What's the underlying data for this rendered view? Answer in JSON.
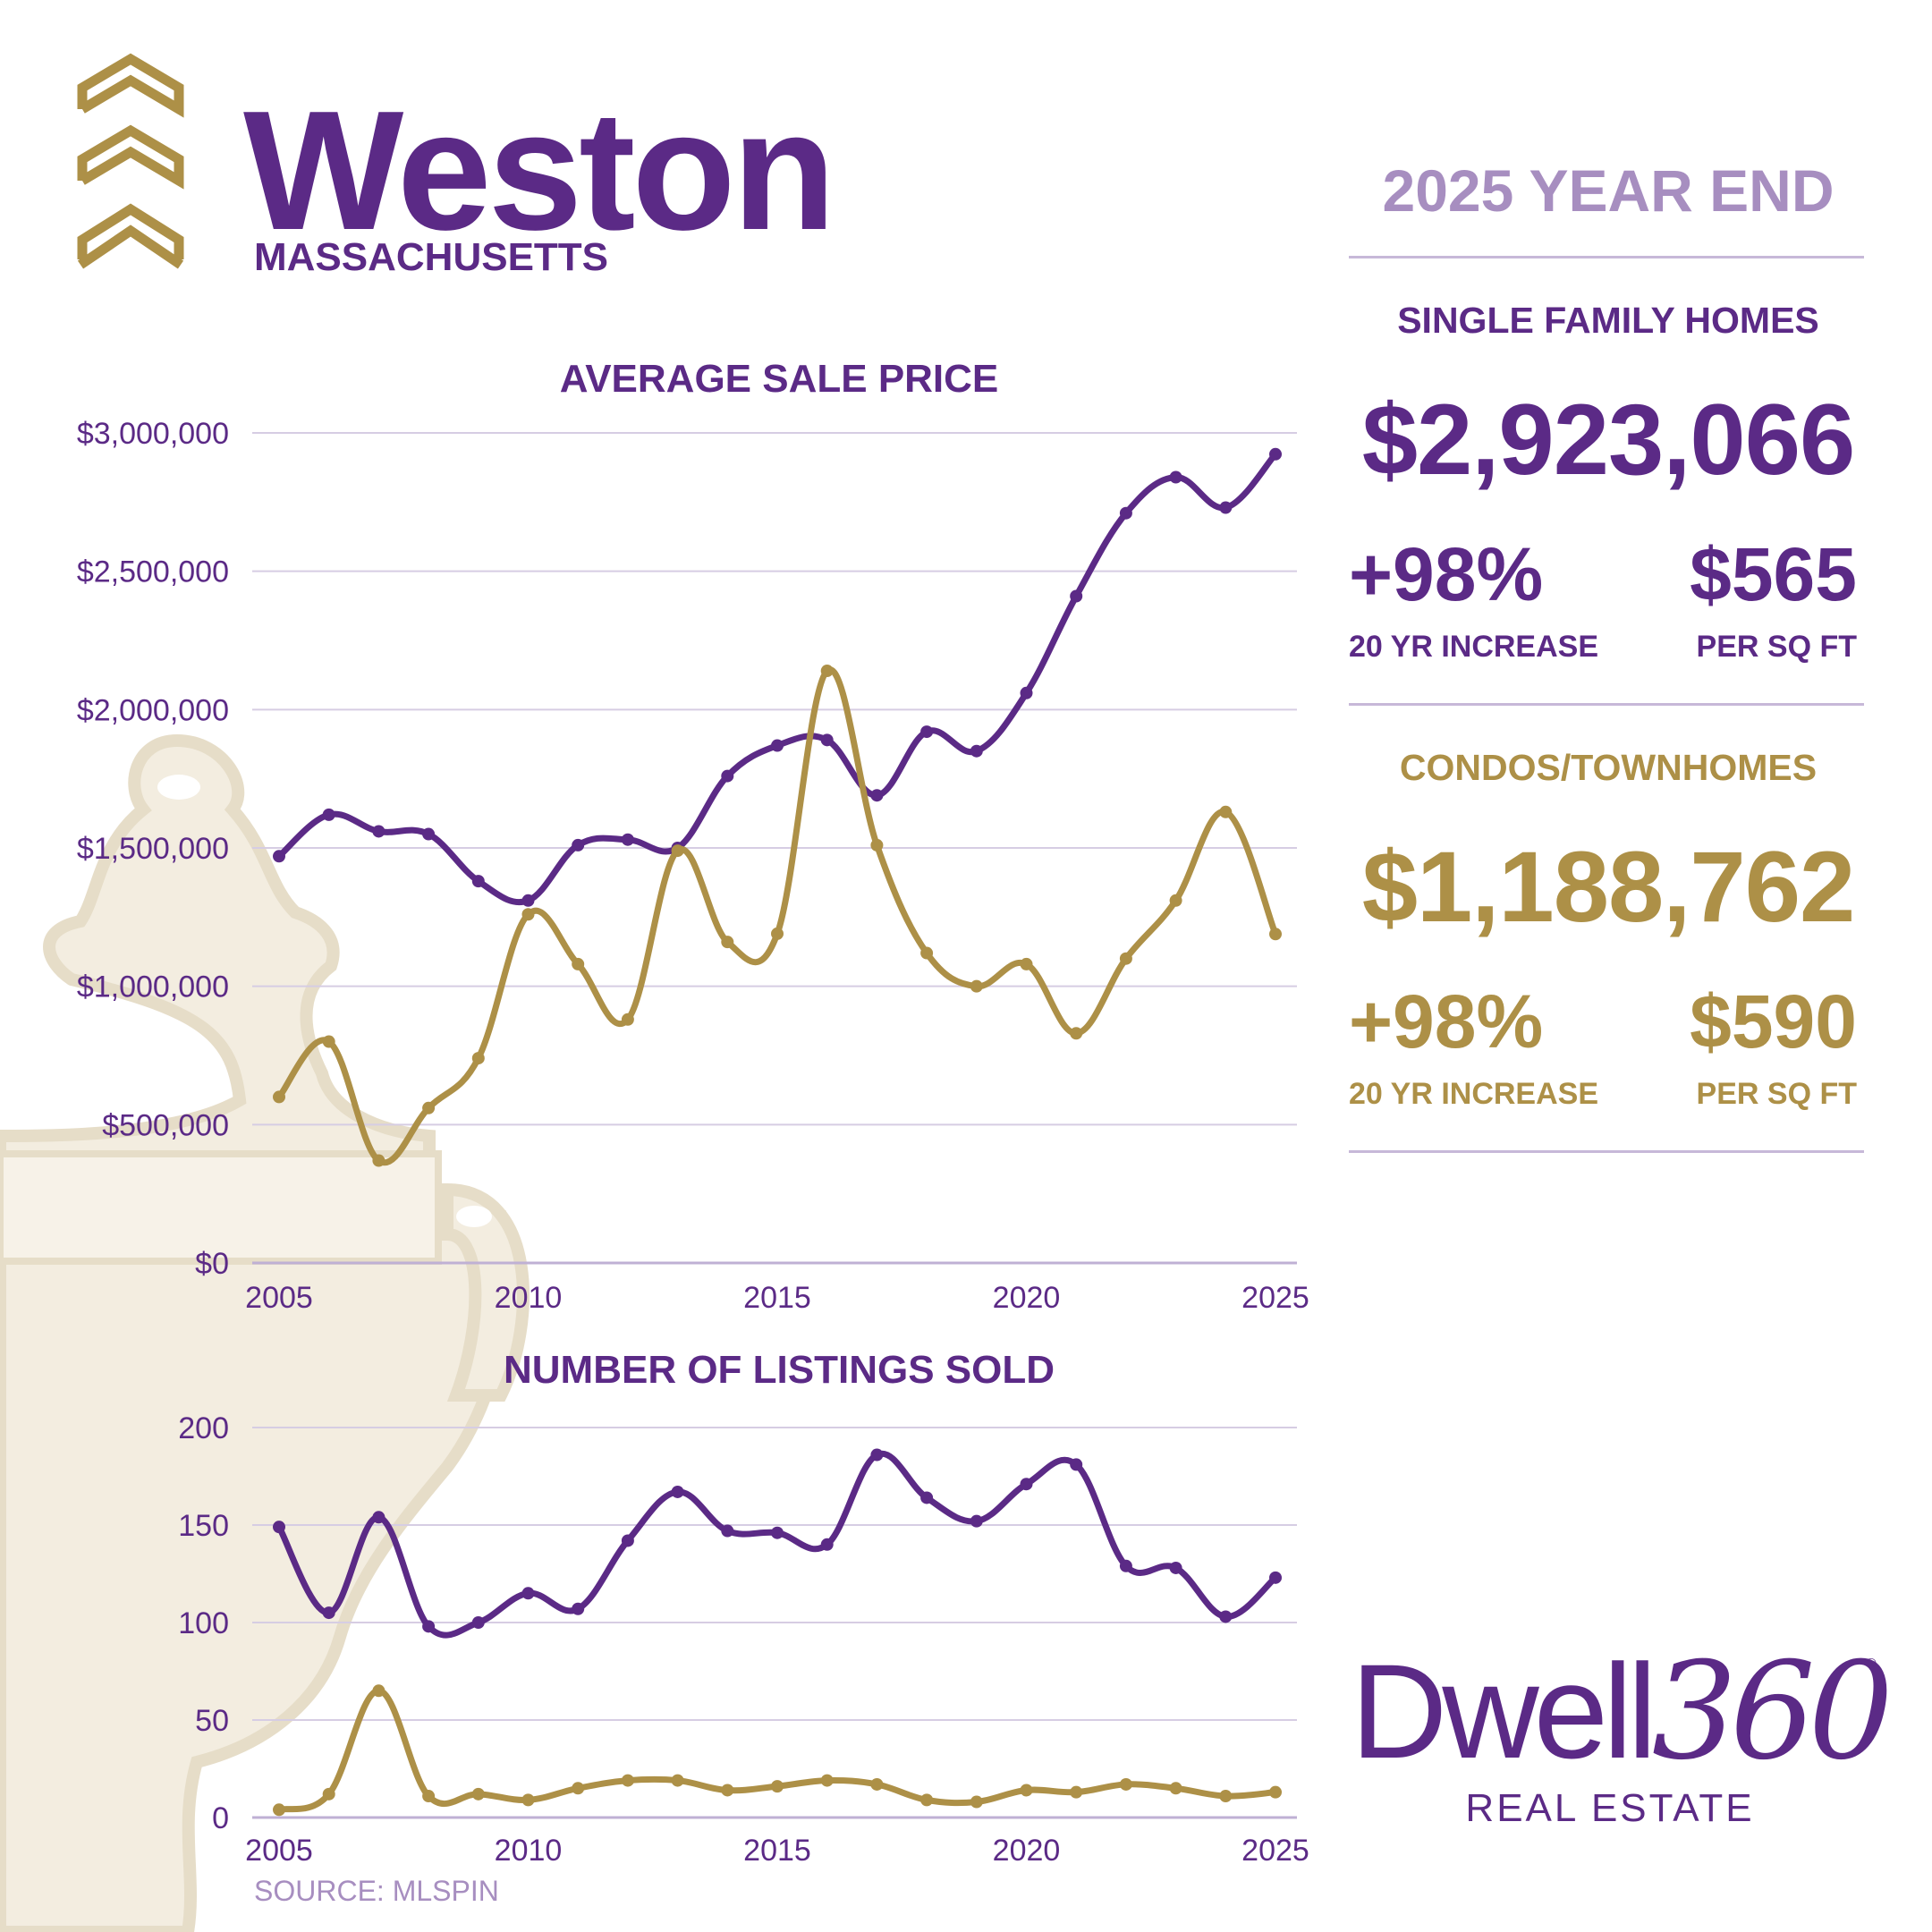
{
  "header": {
    "town": "Weston",
    "state": "MASSACHUSETTS",
    "period": "2025 YEAR END"
  },
  "single_family": {
    "heading": "SINGLE FAMILY HOMES",
    "avg_price": "$2,923,066",
    "increase": "+98%",
    "increase_label": "20 YR INCREASE",
    "ppsf": "$565",
    "ppsf_label": "PER SQ FT"
  },
  "condos": {
    "heading": "CONDOS/TOWNHOMES",
    "avg_price": "$1,188,762",
    "increase": "+98%",
    "increase_label": "20 YR INCREASE",
    "ppsf": "$590",
    "ppsf_label": "PER SQ FT"
  },
  "brand": {
    "name_a": "Dwell",
    "name_b": "360",
    "registered": "®",
    "subtitle": "REAL ESTATE"
  },
  "source": "SOURCE: MLSPIN",
  "colors": {
    "purple": "#5b2a86",
    "gold": "#ad9047",
    "lavender": "#a78ec0",
    "grid": "#d6cde3"
  },
  "chart_data": [
    {
      "type": "line",
      "title": "AVERAGE SALE PRICE",
      "x": [
        2005,
        2006,
        2007,
        2008,
        2009,
        2010,
        2011,
        2012,
        2013,
        2014,
        2015,
        2016,
        2017,
        2018,
        2019,
        2020,
        2021,
        2022,
        2023,
        2024,
        2025
      ],
      "x_ticks": [
        "2005",
        "2010",
        "2015",
        "2020",
        "2025"
      ],
      "y_ticks": [
        "$0",
        "$500,000",
        "$1,000,000",
        "$1,500,000",
        "$2,000,000",
        "$2,500,000",
        "$3,000,000"
      ],
      "ylim": [
        0,
        3000000
      ],
      "grid": true,
      "series": [
        {
          "color": "#5b2a86",
          "values": [
            1470000,
            1620000,
            1560000,
            1550000,
            1380000,
            1310000,
            1510000,
            1530000,
            1500000,
            1760000,
            1870000,
            1890000,
            1690000,
            1920000,
            1850000,
            2060000,
            2410000,
            2710000,
            2840000,
            2730000,
            2923066
          ]
        },
        {
          "color": "#ad9047",
          "values": [
            600000,
            800000,
            370000,
            560000,
            740000,
            1260000,
            1080000,
            880000,
            1490000,
            1160000,
            1190000,
            2140000,
            1510000,
            1120000,
            1000000,
            1080000,
            830000,
            1100000,
            1310000,
            1630000,
            1188762
          ]
        }
      ]
    },
    {
      "type": "line",
      "title": "NUMBER OF LISTINGS SOLD",
      "x": [
        2005,
        2006,
        2007,
        2008,
        2009,
        2010,
        2011,
        2012,
        2013,
        2014,
        2015,
        2016,
        2017,
        2018,
        2019,
        2020,
        2021,
        2022,
        2023,
        2024,
        2025
      ],
      "x_ticks": [
        "2005",
        "2010",
        "2015",
        "2020",
        "2025"
      ],
      "y_ticks": [
        "0",
        "50",
        "100",
        "150",
        "200"
      ],
      "ylim": [
        0,
        200
      ],
      "grid": true,
      "series": [
        {
          "color": "#5b2a86",
          "values": [
            149,
            105,
            154,
            98,
            100,
            115,
            107,
            142,
            167,
            147,
            146,
            140,
            186,
            164,
            152,
            171,
            181,
            129,
            128,
            103,
            123
          ]
        },
        {
          "color": "#ad9047",
          "values": [
            4,
            12,
            65,
            11,
            12,
            9,
            15,
            19,
            19,
            14,
            16,
            19,
            17,
            9,
            8,
            14,
            13,
            17,
            15,
            11,
            13
          ]
        }
      ]
    }
  ]
}
